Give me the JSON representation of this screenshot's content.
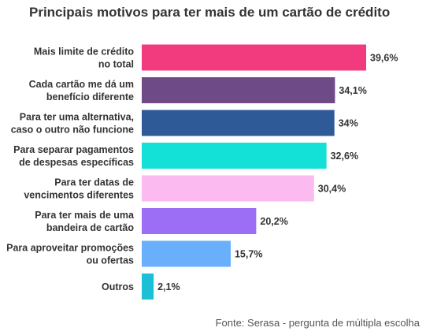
{
  "chart_data": {
    "type": "bar",
    "orientation": "horizontal",
    "title": "Principais motivos para ter mais de um cartão de crédito",
    "categories": [
      [
        "Mais limite de crédito",
        "no total"
      ],
      [
        "Cada cartão me dá um",
        "benefício diferente"
      ],
      [
        "Para ter uma alternativa,",
        "caso o outro não funcione"
      ],
      [
        "Para separar pagamentos",
        "de despesas específicas"
      ],
      [
        "Para ter datas de",
        "vencimentos diferentes"
      ],
      [
        "Para ter mais de uma",
        "bandeira de cartão"
      ],
      [
        "Para aproveitar promoções",
        "ou ofertas"
      ],
      [
        "Outros"
      ]
    ],
    "values": [
      39.6,
      34.1,
      34,
      32.6,
      30.4,
      20.2,
      15.7,
      2.1
    ],
    "value_labels": [
      "39,6%",
      "34,1%",
      "34%",
      "32,6%",
      "30,4%",
      "20,2%",
      "15,7%",
      "2,1%"
    ],
    "colors": [
      "#f23a7e",
      "#6e4a87",
      "#2f5a98",
      "#13e0d6",
      "#fbbaf0",
      "#9b6ef5",
      "#6aaffb",
      "#1cc0d6"
    ],
    "xlim": [
      0,
      39.6
    ],
    "grid": false,
    "legend": "none",
    "source": "Fonte: Serasa - pergunta de múltipla escolha"
  }
}
